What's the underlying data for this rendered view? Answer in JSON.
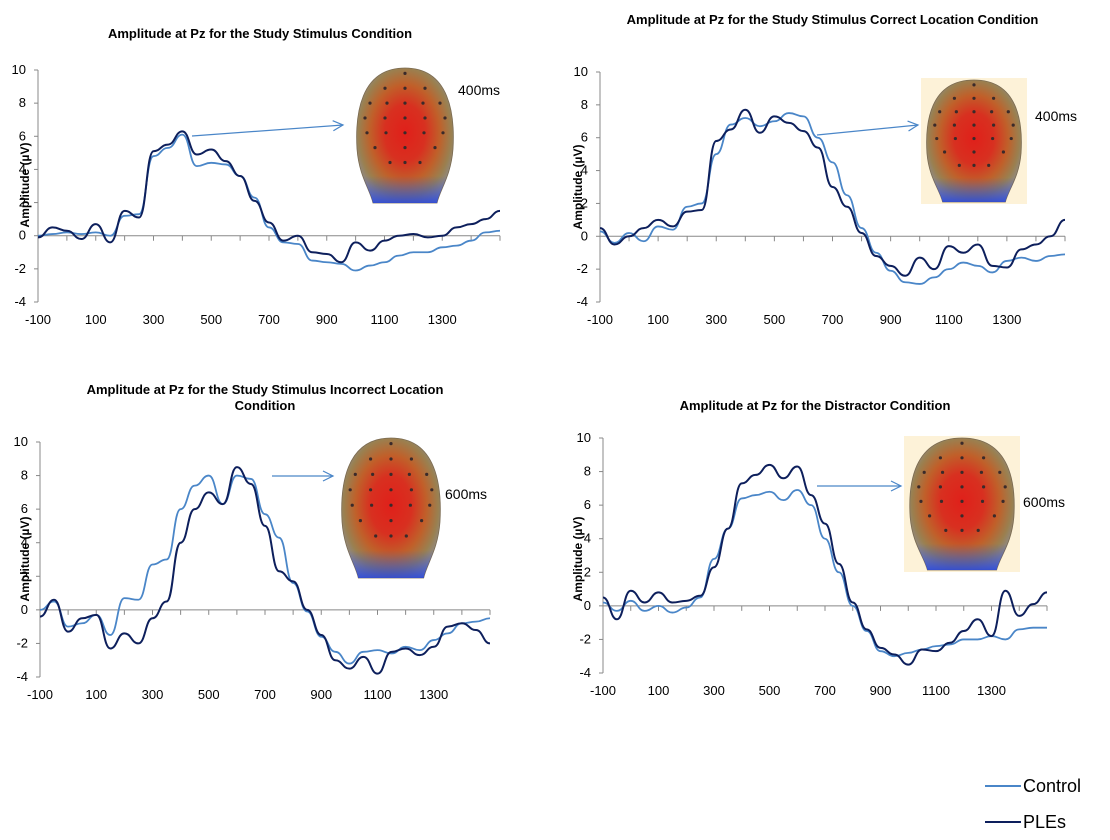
{
  "legend": [
    {
      "name": "Control",
      "color": "#4a86c8"
    },
    {
      "name": "PLEs",
      "color": "#0d1f5c"
    }
  ],
  "chart_data": [
    {
      "type": "line",
      "title": "Amplitude at Pz for the Study Stimulus Condition",
      "ylabel": "Amplitude (µV)",
      "time_label": "400ms",
      "xticks": [
        -100,
        100,
        300,
        500,
        700,
        900,
        1100,
        1300
      ],
      "yticks": [
        -4,
        -2,
        0,
        2,
        4,
        6,
        8,
        10
      ],
      "xlim": [
        -100,
        1500
      ],
      "ylim": [
        -4,
        10
      ],
      "headmap_bg": "#ffffff",
      "series": [
        {
          "name": "Control",
          "color": "#4a86c8",
          "x": [
            -100,
            -50,
            0,
            50,
            100,
            150,
            200,
            250,
            300,
            350,
            400,
            450,
            500,
            550,
            600,
            650,
            700,
            750,
            800,
            850,
            900,
            950,
            1000,
            1050,
            1100,
            1150,
            1200,
            1250,
            1300,
            1350,
            1400,
            1450,
            1500
          ],
          "y": [
            0,
            0.1,
            0.2,
            0.1,
            0.2,
            0,
            1.2,
            1.3,
            4.8,
            5.3,
            6.1,
            4.2,
            4.4,
            4.3,
            3.6,
            2.3,
            0.5,
            -0.4,
            -0.5,
            -1.5,
            -1.6,
            -1.7,
            -2.1,
            -1.8,
            -1.6,
            -1.2,
            -1.0,
            -1.0,
            -0.7,
            -0.6,
            -0.3,
            0.2,
            0.3
          ]
        },
        {
          "name": "PLEs",
          "color": "#0d1f5c",
          "x": [
            -100,
            -50,
            0,
            50,
            100,
            150,
            200,
            250,
            300,
            350,
            400,
            450,
            500,
            550,
            600,
            650,
            700,
            750,
            800,
            850,
            900,
            950,
            1000,
            1050,
            1100,
            1150,
            1200,
            1250,
            1300,
            1350,
            1400,
            1450,
            1500
          ],
          "y": [
            -0.1,
            0.5,
            0.3,
            -0.2,
            0.7,
            -0.4,
            1.5,
            1.1,
            5.1,
            5.5,
            6.3,
            4.9,
            5.2,
            4.5,
            3.6,
            2.1,
            0.8,
            -0.3,
            0.0,
            -1.0,
            -1.1,
            -1.6,
            -0.4,
            -0.9,
            -0.3,
            0,
            0.1,
            -0.1,
            0.0,
            0.5,
            0.7,
            1.0,
            1.5
          ]
        }
      ]
    },
    {
      "type": "line",
      "title": "Amplitude at Pz for the Study Stimulus Correct Location Condition",
      "ylabel": "Amplitude (µV)",
      "time_label": "400ms",
      "xticks": [
        -100,
        100,
        300,
        500,
        700,
        900,
        1100,
        1300
      ],
      "yticks": [
        -4,
        -2,
        0,
        2,
        4,
        6,
        8,
        10
      ],
      "xlim": [
        -100,
        1500
      ],
      "ylim": [
        -4,
        10
      ],
      "headmap_bg": "#fdf2d8",
      "series": [
        {
          "name": "Control",
          "color": "#4a86c8",
          "x": [
            -100,
            -50,
            0,
            50,
            100,
            150,
            200,
            250,
            300,
            350,
            400,
            450,
            500,
            550,
            600,
            650,
            700,
            750,
            800,
            850,
            900,
            950,
            1000,
            1050,
            1100,
            1150,
            1200,
            1250,
            1300,
            1350,
            1400,
            1450,
            1500
          ],
          "y": [
            0.3,
            -0.4,
            0.2,
            -0.3,
            0.6,
            0.4,
            1.8,
            2.0,
            5.0,
            6.8,
            7.2,
            6.7,
            7.0,
            7.5,
            7.3,
            6.0,
            4.5,
            2.5,
            0.5,
            -1.0,
            -2.1,
            -2.8,
            -2.9,
            -2.5,
            -2.0,
            -1.6,
            -1.8,
            -2.2,
            -1.5,
            -1.3,
            -1.5,
            -1.2,
            -1.1
          ]
        },
        {
          "name": "PLEs",
          "color": "#0d1f5c",
          "x": [
            -100,
            -50,
            0,
            50,
            100,
            150,
            200,
            250,
            300,
            350,
            400,
            450,
            500,
            550,
            600,
            650,
            700,
            750,
            800,
            850,
            900,
            950,
            1000,
            1050,
            1100,
            1150,
            1200,
            1250,
            1300,
            1350,
            1400,
            1450,
            1500
          ],
          "y": [
            0.5,
            -0.5,
            0.0,
            0.5,
            1.0,
            0.6,
            1.5,
            1.6,
            5.8,
            6.5,
            7.7,
            6.3,
            7.3,
            6.9,
            6.4,
            5.4,
            3.0,
            1.8,
            0.2,
            -1.2,
            -1.8,
            -2.4,
            -1.3,
            -2.0,
            -0.6,
            -1.0,
            -0.5,
            -1.8,
            -1.9,
            -0.8,
            -0.5,
            0.0,
            1.0
          ]
        }
      ]
    },
    {
      "type": "line",
      "title": "Amplitude at Pz for the Study Stimulus Incorrect Location Condition",
      "ylabel": "Amplitude (µV)",
      "time_label": "600ms",
      "xticks": [
        -100,
        100,
        300,
        500,
        700,
        900,
        1100,
        1300
      ],
      "yticks": [
        -4,
        -2,
        0,
        2,
        4,
        6,
        8,
        10
      ],
      "xlim": [
        -100,
        1500
      ],
      "ylim": [
        -4,
        10
      ],
      "headmap_bg": "#ffffff",
      "series": [
        {
          "name": "Control",
          "color": "#4a86c8",
          "x": [
            -100,
            -50,
            0,
            50,
            100,
            150,
            200,
            250,
            300,
            350,
            400,
            450,
            500,
            550,
            600,
            650,
            700,
            750,
            800,
            850,
            900,
            950,
            1000,
            1050,
            1100,
            1150,
            1200,
            1250,
            1300,
            1350,
            1400,
            1450,
            1500
          ],
          "y": [
            0.0,
            0.5,
            -1.0,
            -0.8,
            -0.3,
            -1.5,
            0.7,
            0.6,
            2.7,
            3.0,
            6.0,
            7.4,
            8.0,
            6.3,
            8.0,
            7.8,
            5.7,
            4.3,
            1.6,
            -0.1,
            -1.6,
            -2.5,
            -3.2,
            -2.5,
            -2.4,
            -2.6,
            -2.2,
            -2.4,
            -1.8,
            -1.4,
            -0.8,
            -0.7,
            -0.5
          ]
        },
        {
          "name": "PLEs",
          "color": "#0d1f5c",
          "x": [
            -100,
            -50,
            0,
            50,
            100,
            150,
            200,
            250,
            300,
            350,
            400,
            450,
            500,
            550,
            600,
            650,
            700,
            750,
            800,
            850,
            900,
            950,
            1000,
            1050,
            1100,
            1150,
            1200,
            1250,
            1300,
            1350,
            1400,
            1450,
            1500
          ],
          "y": [
            -0.4,
            0.6,
            -1.3,
            -0.5,
            -0.3,
            -2.3,
            -1.4,
            -2.0,
            -0.5,
            0.5,
            4.0,
            6.0,
            7.0,
            6.3,
            8.5,
            7.5,
            5.0,
            2.3,
            1.7,
            0.0,
            -1.5,
            -3.0,
            -3.5,
            -2.8,
            -3.8,
            -2.5,
            -2.3,
            -2.7,
            -2.2,
            -1.0,
            -0.8,
            -1.2,
            -2.0
          ]
        }
      ]
    },
    {
      "type": "line",
      "title": "Amplitude at Pz for the Distractor Condition",
      "ylabel": "Amplitude (µV)",
      "time_label": "600ms",
      "xticks": [
        -100,
        100,
        300,
        500,
        700,
        900,
        1100,
        1300
      ],
      "yticks": [
        -4,
        -2,
        0,
        2,
        4,
        6,
        8,
        10
      ],
      "xlim": [
        -100,
        1500
      ],
      "ylim": [
        -4,
        10
      ],
      "headmap_bg": "#fdf2d8",
      "series": [
        {
          "name": "Control",
          "color": "#4a86c8",
          "x": [
            -100,
            -50,
            0,
            50,
            100,
            150,
            200,
            250,
            300,
            350,
            400,
            450,
            500,
            550,
            600,
            650,
            700,
            750,
            800,
            850,
            900,
            950,
            1000,
            1050,
            1100,
            1150,
            1200,
            1250,
            1300,
            1350,
            1400,
            1450,
            1500
          ],
          "y": [
            0.2,
            -0.3,
            0.3,
            -0.3,
            0.0,
            -0.4,
            -0.1,
            0.5,
            2.8,
            4.6,
            6.4,
            6.6,
            6.8,
            6.3,
            6.9,
            6.0,
            4.0,
            2.0,
            0.0,
            -1.5,
            -2.7,
            -3.0,
            -2.8,
            -2.6,
            -2.4,
            -2.3,
            -2.0,
            -2.0,
            -1.8,
            -2.0,
            -1.4,
            -1.3,
            -1.3
          ]
        },
        {
          "name": "PLEs",
          "color": "#0d1f5c",
          "x": [
            -100,
            -50,
            0,
            50,
            100,
            150,
            200,
            250,
            300,
            350,
            400,
            450,
            500,
            550,
            600,
            650,
            700,
            750,
            800,
            850,
            900,
            950,
            1000,
            1050,
            1100,
            1150,
            1200,
            1250,
            1300,
            1350,
            1400,
            1450,
            1500
          ],
          "y": [
            0.5,
            -0.8,
            0.9,
            0.2,
            0.8,
            0.2,
            0.3,
            0.6,
            2.3,
            4.6,
            7.3,
            7.8,
            8.4,
            7.6,
            8.3,
            6.6,
            4.9,
            2.5,
            0.2,
            -1.4,
            -2.5,
            -2.9,
            -3.5,
            -2.6,
            -2.7,
            -2.2,
            -1.5,
            -0.8,
            -1.8,
            0.9,
            -0.6,
            0.1,
            0.8
          ]
        }
      ]
    }
  ]
}
